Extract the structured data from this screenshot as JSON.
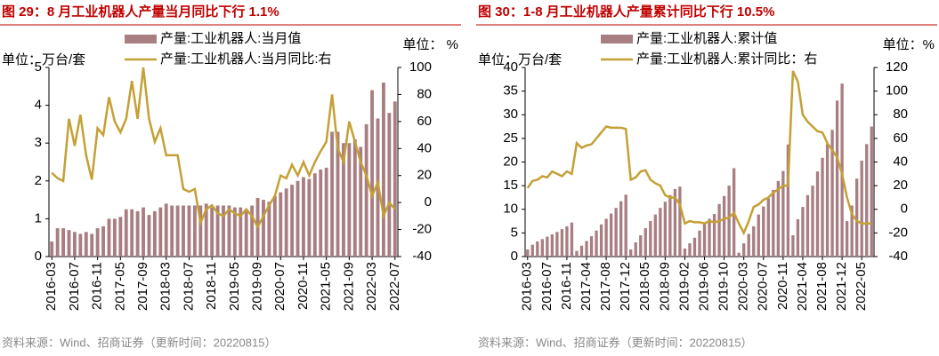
{
  "chart_data": [
    {
      "type": "bar_line",
      "title": "图 29：8 月工业机器人产量当月同比下行 1.1%",
      "y_label": "单位：万台/套",
      "y2_label": "单位： %",
      "source": "资料来源：Wind、招商证券（更新时间：20220815）",
      "categories": [
        "2016-03",
        null,
        null,
        null,
        "2016-07",
        null,
        null,
        null,
        "2016-11",
        null,
        null,
        null,
        "2017-05",
        null,
        null,
        null,
        "2017-09",
        null,
        null,
        null,
        "2018-03",
        null,
        null,
        null,
        "2018-07",
        null,
        null,
        null,
        "2018-11",
        null,
        null,
        null,
        "2019-05",
        null,
        null,
        null,
        "2019-09",
        null,
        null,
        null,
        "2020-07",
        null,
        null,
        null,
        "2020-11",
        null,
        null,
        null,
        "2021-05",
        null,
        null,
        null,
        "2021-09",
        null,
        null,
        null,
        "2022-03",
        null,
        null,
        null,
        "2022-07"
      ],
      "series": [
        {
          "name": "产量:工业机器人:当月值",
          "color": "#a87e82",
          "axis": "y",
          "values": [
            0.4,
            0.75,
            0.75,
            0.7,
            0.65,
            0.6,
            0.65,
            0.6,
            0.75,
            0.8,
            1.0,
            1.0,
            1.05,
            1.25,
            1.25,
            1.2,
            1.3,
            1.1,
            1.2,
            1.3,
            1.4,
            1.35,
            1.35,
            1.35,
            1.35,
            1.35,
            1.35,
            1.4,
            1.3,
            1.35,
            1.35,
            1.35,
            1.3,
            1.3,
            1.25,
            1.35,
            1.55,
            1.5,
            1.45,
            1.6,
            1.7,
            1.8,
            1.9,
            2.0,
            2.1,
            2.05,
            2.2,
            2.3,
            2.35,
            3.3,
            3.3,
            3.0,
            3.0,
            3.1,
            2.9,
            3.5,
            4.4,
            3.65,
            4.6,
            3.8,
            4.1
          ]
        },
        {
          "name": "产量:工业机器人:当月同比:右",
          "color": "#c4a035",
          "axis": "y2",
          "values": [
            22,
            18,
            16,
            62,
            42,
            65,
            35,
            17,
            55,
            50,
            78,
            60,
            52,
            62,
            90,
            62,
            100,
            62,
            45,
            55,
            35,
            35,
            35,
            10,
            8,
            10,
            -15,
            -5,
            -2,
            -8,
            -10,
            -5,
            -8,
            -10,
            -5,
            -10,
            -18,
            -10,
            -2,
            5,
            20,
            18,
            28,
            20,
            30,
            20,
            30,
            38,
            45,
            80,
            40,
            30,
            60,
            45,
            30,
            20,
            5,
            15,
            -10,
            0,
            -5
          ]
        }
      ],
      "ylim": [
        0,
        5
      ],
      "yticks": [
        0,
        1,
        2,
        3,
        4,
        5
      ],
      "y2lim": [
        -40,
        100
      ],
      "y2ticks": [
        -40,
        -20,
        0,
        20,
        40,
        60,
        80,
        100
      ],
      "y2tick_negative_color": "#ff0000",
      "grid": false
    },
    {
      "type": "bar_line",
      "title": "图 30：1-8 月工业机器人产量累计同比下行 10.5%",
      "y_label": "单位：万台/套",
      "y2_label": "单位：%",
      "source": "资料来源：Wind、招商证券（更新时间：20220815）",
      "categories": [
        "2016-03",
        null,
        null,
        null,
        "2016-07",
        null,
        null,
        null,
        "2016-11",
        null,
        null,
        null,
        "2017-04",
        null,
        null,
        null,
        "2017-08",
        null,
        null,
        null,
        "2017-12",
        null,
        null,
        null,
        "2018-05",
        null,
        null,
        null,
        "2018-09",
        null,
        null,
        null,
        "2019-02",
        null,
        null,
        null,
        "2019-06",
        null,
        null,
        null,
        "2019-10",
        null,
        null,
        null,
        "2020-03",
        null,
        null,
        null,
        "2020-07",
        null,
        null,
        null,
        "2020-11",
        null,
        null,
        null,
        "2021-04",
        null,
        null,
        null,
        "2021-08",
        null,
        null,
        null,
        "2021-12",
        null,
        null,
        null,
        "2022-05",
        null,
        null
      ],
      "series": [
        {
          "name": "产量:工业机器人:累计值",
          "color": "#a87e82",
          "axis": "y",
          "values": [
            1.5,
            2.5,
            3.2,
            3.7,
            4.2,
            4.7,
            5.2,
            5.8,
            6.4,
            7.2,
            1.2,
            2.3,
            3.3,
            4.3,
            5.5,
            6.8,
            8.0,
            9.1,
            10.3,
            11.7,
            13.1,
            1.5,
            3.0,
            4.5,
            6.0,
            7.5,
            8.9,
            10.3,
            11.6,
            13.0,
            14.3,
            14.8,
            1.7,
            2.8,
            4.0,
            5.5,
            6.9,
            8.0,
            9.0,
            11.1,
            12.8,
            15.0,
            18.7,
            0.8,
            2.8,
            4.8,
            6.4,
            8.9,
            10.6,
            12.3,
            14.1,
            16.0,
            18.1,
            23.7,
            4.5,
            7.9,
            10.5,
            13.0,
            15.0,
            18.0,
            20.9,
            23.8,
            26.8,
            33.0,
            36.6,
            7.5,
            10.8,
            16.5,
            20.3,
            23.8,
            27.5
          ]
        },
        {
          "name": "产量:工业机器人:累计同比：右",
          "color": "#c4a035",
          "axis": "y2",
          "values": [
            18,
            24,
            25,
            28,
            27,
            32,
            30,
            28,
            32,
            30,
            56,
            52,
            54,
            55,
            60,
            65,
            70,
            69,
            69,
            69,
            68,
            25,
            27,
            32,
            33,
            25,
            22,
            20,
            12,
            10,
            10,
            4,
            -12,
            -10,
            -11,
            -11,
            -12,
            -10,
            -11,
            -10,
            -8,
            -7,
            -3,
            -12,
            -20,
            -10,
            2,
            4,
            8,
            10,
            14,
            17,
            20,
            20,
            117,
            108,
            80,
            74,
            70,
            66,
            65,
            56,
            50,
            44,
            30,
            10,
            -4,
            -10,
            -12,
            -12,
            -12
          ]
        }
      ],
      "ylim": [
        0,
        40
      ],
      "yticks": [
        0,
        5,
        10,
        15,
        20,
        25,
        30,
        35,
        40
      ],
      "y2lim": [
        -40,
        120
      ],
      "y2ticks": [
        -40,
        -20,
        0,
        20,
        40,
        60,
        80,
        100,
        120
      ],
      "y2tick_negative_color": "#ff0000",
      "grid": false
    }
  ]
}
